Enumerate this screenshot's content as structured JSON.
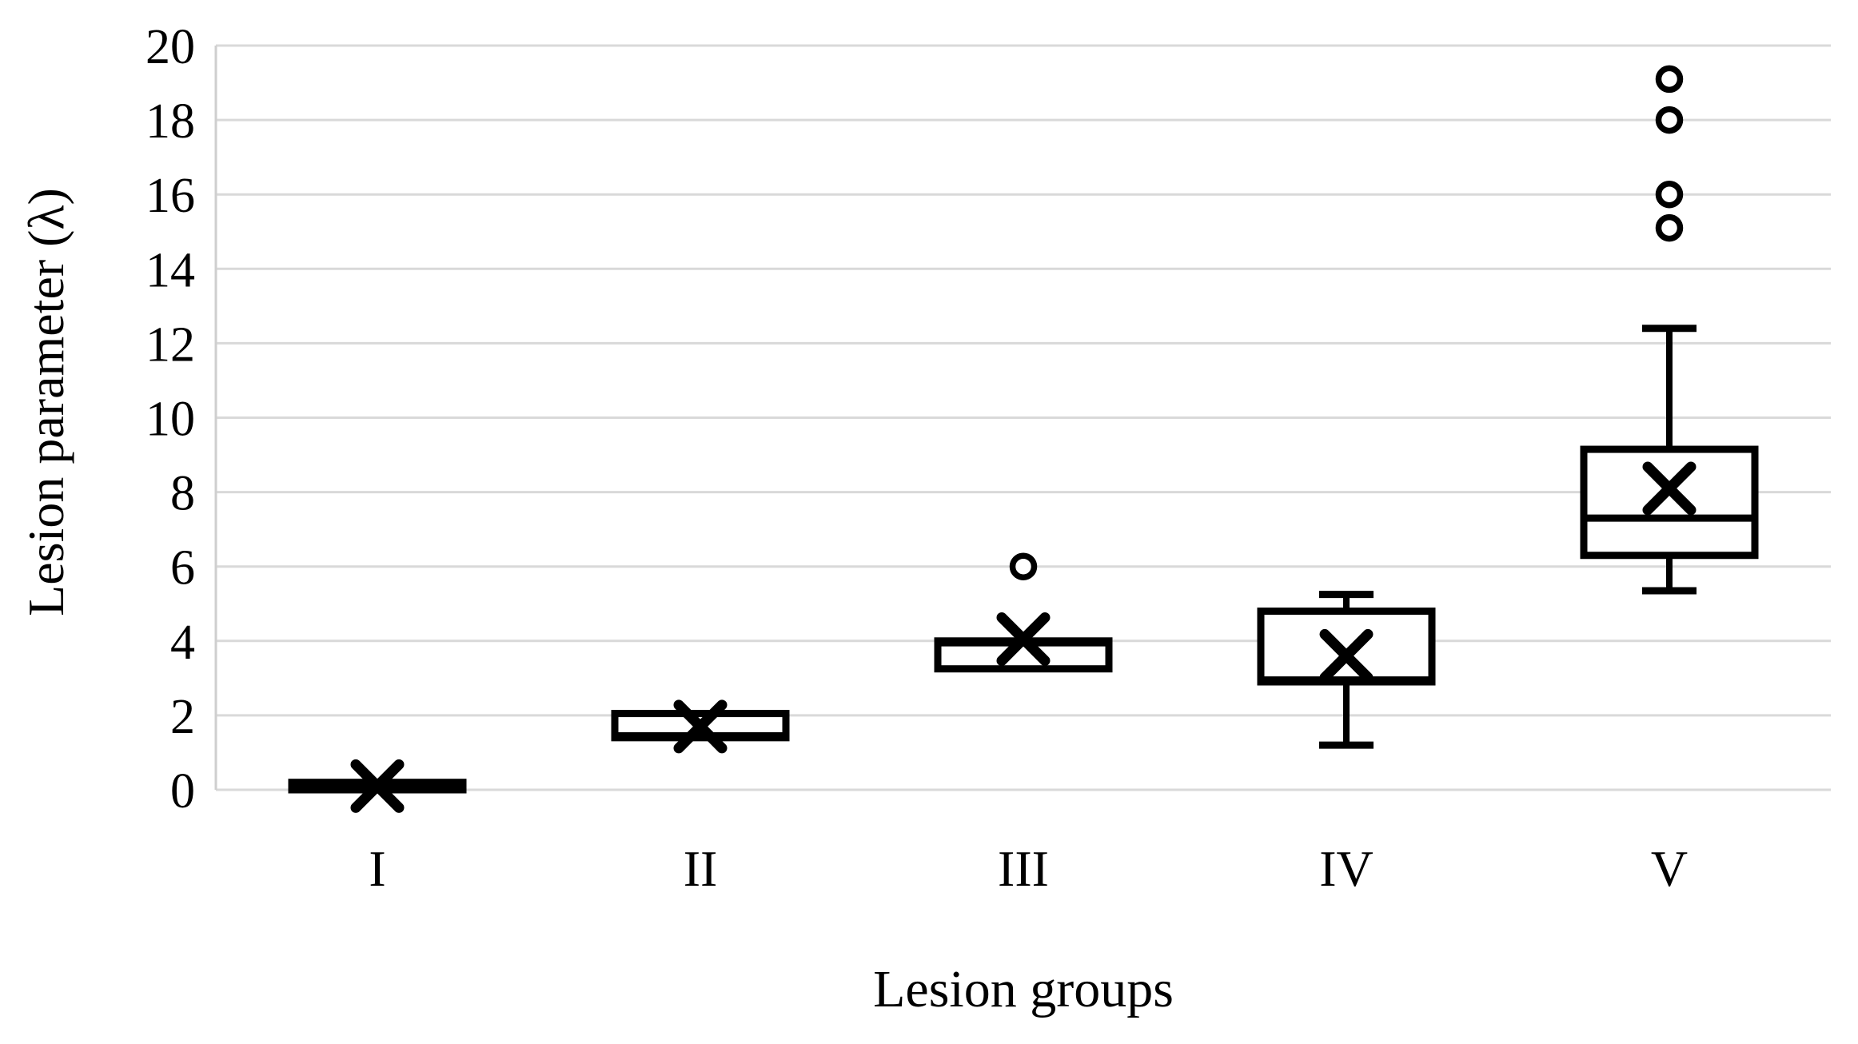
{
  "chart_data": {
    "type": "box",
    "title": "",
    "xlabel": "Lesion groups",
    "ylabel": "Lesion parameter (λ)",
    "ylim": [
      0,
      20
    ],
    "yticks": [
      0,
      2,
      4,
      6,
      8,
      10,
      12,
      14,
      16,
      18,
      20
    ],
    "grid": true,
    "legend": "none",
    "categories": [
      "I",
      "II",
      "III",
      "IV",
      "V"
    ],
    "groups": [
      {
        "label": "I",
        "whisker_low": 0.0,
        "q1": 0.0,
        "median": 0.1,
        "q3": 0.2,
        "whisker_high": 0.2,
        "mean": 0.1,
        "outliers": []
      },
      {
        "label": "II",
        "whisker_low": 1.4,
        "q1": 1.4,
        "median": 1.45,
        "q3": 2.05,
        "whisker_high": 2.05,
        "mean": 1.7,
        "outliers": []
      },
      {
        "label": "III",
        "whisker_low": 3.25,
        "q1": 3.25,
        "median": 3.95,
        "q3": 4.0,
        "whisker_high": 4.0,
        "mean": 4.05,
        "outliers": [
          6.0
        ]
      },
      {
        "label": "IV",
        "whisker_low": 1.2,
        "q1": 2.9,
        "median": 2.95,
        "q3": 4.8,
        "whisker_high": 5.25,
        "mean": 3.6,
        "outliers": []
      },
      {
        "label": "V",
        "whisker_low": 5.35,
        "q1": 6.3,
        "median": 7.3,
        "q3": 9.15,
        "whisker_high": 12.4,
        "mean": 8.1,
        "outliers": [
          15.1,
          16.0,
          18.0,
          19.1
        ]
      }
    ],
    "colors": {
      "box_stroke": "#000000",
      "box_fill": "#ffffff",
      "gridline": "#d9d9d9",
      "axis_line": "#cfcfcf",
      "text": "#000000",
      "background": "#ffffff"
    }
  }
}
